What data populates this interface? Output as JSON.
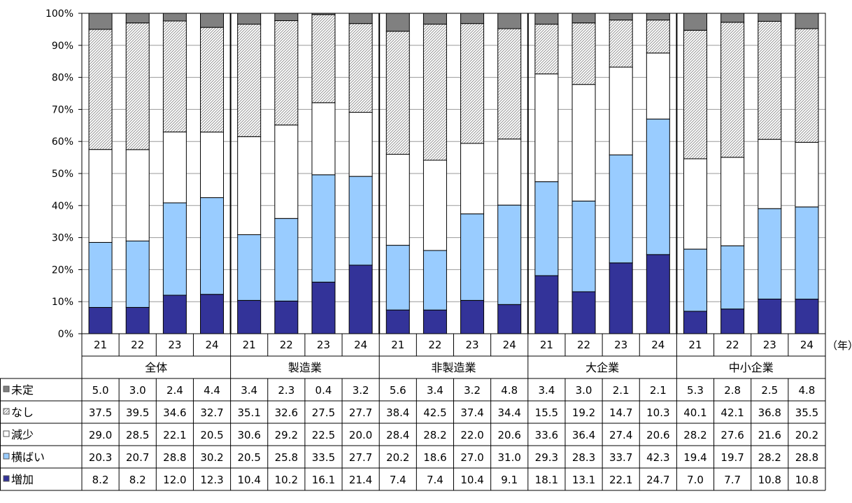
{
  "chart_data": {
    "type": "bar",
    "stacked": "percent",
    "y_axis": {
      "ticks": [
        "0%",
        "10%",
        "20%",
        "30%",
        "40%",
        "50%",
        "60%",
        "70%",
        "80%",
        "90%",
        "100%"
      ],
      "ylim": [
        0,
        100
      ]
    },
    "grid": true,
    "year_unit_label": "（年）",
    "groups": [
      {
        "name": "全体",
        "years": [
          "21",
          "22",
          "23",
          "24"
        ]
      },
      {
        "name": "製造業",
        "years": [
          "21",
          "22",
          "23",
          "24"
        ]
      },
      {
        "name": "非製造業",
        "years": [
          "21",
          "22",
          "23",
          "24"
        ]
      },
      {
        "name": "大企業",
        "years": [
          "21",
          "22",
          "23",
          "24"
        ]
      },
      {
        "name": "中小企業",
        "years": [
          "21",
          "22",
          "23",
          "24"
        ]
      }
    ],
    "series": [
      {
        "name": "増加",
        "color": "#333399",
        "pattern": "solid",
        "values": [
          8.2,
          8.2,
          12.0,
          12.3,
          10.4,
          10.2,
          16.1,
          21.4,
          7.4,
          7.4,
          10.4,
          9.1,
          18.1,
          13.1,
          22.1,
          24.7,
          7.0,
          7.7,
          10.8,
          10.8
        ],
        "labels": [
          "8.2",
          "8.2",
          "12.0",
          "12.3",
          "10.4",
          "10.2",
          "16.1",
          "21.4",
          "7.4",
          "7.4",
          "10.4",
          "9.1",
          "18.1",
          "13.1",
          "22.1",
          "24.7",
          "7.0",
          "7.7",
          "10.8",
          "10.8"
        ]
      },
      {
        "name": "横ばい",
        "color": "#99ccff",
        "pattern": "solid",
        "values": [
          20.3,
          20.7,
          28.8,
          30.2,
          20.5,
          25.8,
          33.5,
          27.7,
          20.2,
          18.6,
          27.0,
          31.0,
          29.3,
          28.3,
          33.7,
          42.3,
          19.4,
          19.7,
          28.2,
          28.8
        ],
        "labels": [
          "20.3",
          "20.7",
          "28.8",
          "30.2",
          "20.5",
          "25.8",
          "33.5",
          "27.7",
          "20.2",
          "18.6",
          "27.0",
          "31.0",
          "29.3",
          "28.3",
          "33.7",
          "42.3",
          "19.4",
          "19.7",
          "28.2",
          "28.8"
        ]
      },
      {
        "name": "減少",
        "color": "#ffffff",
        "pattern": "solid",
        "values": [
          29.0,
          28.5,
          22.1,
          20.5,
          30.6,
          29.2,
          22.5,
          20.0,
          28.4,
          28.2,
          22.0,
          20.6,
          33.6,
          36.4,
          27.4,
          20.6,
          28.2,
          27.6,
          21.6,
          20.2
        ],
        "labels": [
          "29.0",
          "28.5",
          "22.1",
          "20.5",
          "30.6",
          "29.2",
          "22.5",
          "20.0",
          "28.4",
          "28.2",
          "22.0",
          "20.6",
          "33.6",
          "36.4",
          "27.4",
          "20.6",
          "28.2",
          "27.6",
          "21.6",
          "20.2"
        ]
      },
      {
        "name": "なし",
        "color": "#ffffff",
        "pattern": "hatch",
        "values": [
          37.5,
          39.5,
          34.6,
          32.7,
          35.1,
          32.6,
          27.5,
          27.7,
          38.4,
          42.5,
          37.4,
          34.4,
          15.5,
          19.2,
          14.7,
          10.3,
          40.1,
          42.1,
          36.8,
          35.5
        ],
        "labels": [
          "37.5",
          "39.5",
          "34.6",
          "32.7",
          "35.1",
          "32.6",
          "27.5",
          "27.7",
          "38.4",
          "42.5",
          "37.4",
          "34.4",
          "15.5",
          "19.2",
          "14.7",
          "10.3",
          "40.1",
          "42.1",
          "36.8",
          "35.5"
        ]
      },
      {
        "name": "未定",
        "color": "#808080",
        "pattern": "solid",
        "values": [
          5.0,
          3.0,
          2.4,
          4.4,
          3.4,
          2.3,
          0.4,
          3.2,
          5.6,
          3.4,
          3.2,
          4.8,
          3.4,
          3.0,
          2.1,
          2.1,
          5.3,
          2.8,
          2.5,
          4.8
        ],
        "labels": [
          "5.0",
          "3.0",
          "2.4",
          "4.4",
          "3.4",
          "2.3",
          "0.4",
          "3.2",
          "5.6",
          "3.4",
          "3.2",
          "4.8",
          "3.4",
          "3.0",
          "2.1",
          "2.1",
          "5.3",
          "2.8",
          "2.5",
          "4.8"
        ]
      }
    ],
    "table_row_order": [
      "未定",
      "なし",
      "減少",
      "横ばい",
      "増加"
    ]
  }
}
